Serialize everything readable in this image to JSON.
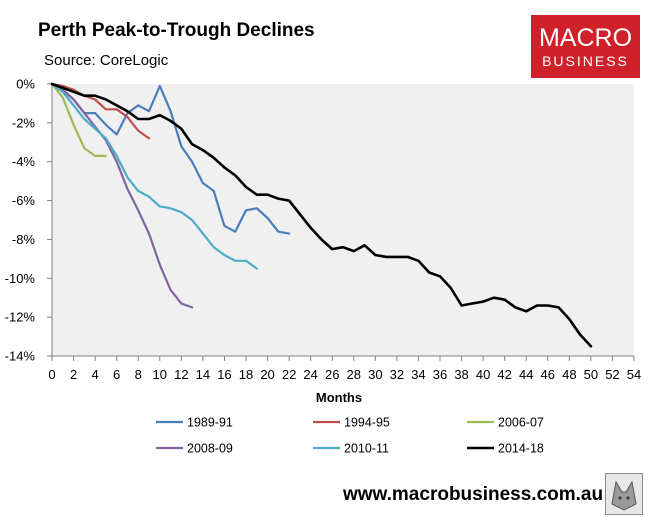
{
  "header": {
    "title": "Perth Peak-to-Trough Declines",
    "source": "Source: CoreLogic"
  },
  "logo": {
    "line1": "MACRO",
    "line2": "BUSINESS",
    "icon": "macrobusiness-logo"
  },
  "footer": {
    "url": "www.macrobusiness.com.au",
    "badge_icon": "wolf-badge-icon"
  },
  "colors": {
    "plot_bg": "#f0f0f0",
    "s1989": "#4a7ebb",
    "s1994": "#c0504d",
    "s2006": "#9bbb59",
    "s2008": "#8064a2",
    "s2010": "#4bacc6",
    "s2014": "#000000"
  },
  "chart_data": {
    "type": "line",
    "title": "Perth Peak-to-Trough Declines",
    "xlabel": "Months",
    "ylabel": "",
    "xlim": [
      0,
      54
    ],
    "ylim": [
      -14,
      0
    ],
    "x_ticks": [
      "0",
      "2",
      "4",
      "6",
      "8",
      "10",
      "12",
      "14",
      "16",
      "18",
      "20",
      "22",
      "24",
      "26",
      "28",
      "30",
      "32",
      "34",
      "36",
      "38",
      "40",
      "42",
      "44",
      "46",
      "48",
      "50",
      "52",
      "54"
    ],
    "y_ticks": [
      {
        "value": 0,
        "label": "0%"
      },
      {
        "value": -2,
        "label": "-2%"
      },
      {
        "value": -4,
        "label": "-4%"
      },
      {
        "value": -6,
        "label": "-6%"
      },
      {
        "value": -8,
        "label": "-8%"
      },
      {
        "value": -10,
        "label": "-10%"
      },
      {
        "value": -12,
        "label": "-12%"
      },
      {
        "value": -14,
        "label": "-14%"
      }
    ],
    "legend_position": "bottom",
    "series": [
      {
        "name": "1989-91",
        "color_key": "s1989",
        "width": 2.2,
        "x": [
          0,
          1,
          2,
          3,
          4,
          5,
          6,
          7,
          8,
          9,
          10,
          11,
          12,
          13,
          14,
          15,
          16,
          17,
          18,
          19,
          20,
          21,
          22
        ],
        "values": [
          0,
          -0.3,
          -0.8,
          -1.5,
          -1.5,
          -2.1,
          -2.6,
          -1.5,
          -1.1,
          -1.4,
          -0.1,
          -1.4,
          -3.2,
          -4.0,
          -5.1,
          -5.5,
          -7.3,
          -7.6,
          -6.5,
          -6.4,
          -6.9,
          -7.6,
          -7.7
        ]
      },
      {
        "name": "1994-95",
        "color_key": "s1994",
        "width": 2.2,
        "x": [
          0,
          1,
          2,
          3,
          4,
          5,
          6,
          7,
          8,
          9
        ],
        "values": [
          0,
          -0.1,
          -0.3,
          -0.6,
          -0.8,
          -1.3,
          -1.3,
          -1.7,
          -2.4,
          -2.8
        ]
      },
      {
        "name": "2006-07",
        "color_key": "s2006",
        "width": 2.2,
        "x": [
          0,
          1,
          2,
          3,
          4,
          5
        ],
        "values": [
          0,
          -0.7,
          -2.1,
          -3.3,
          -3.7,
          -3.7
        ]
      },
      {
        "name": "2008-09",
        "color_key": "s2008",
        "width": 2.2,
        "x": [
          0,
          1,
          2,
          3,
          4,
          5,
          6,
          7,
          8,
          9,
          10,
          11,
          12,
          13
        ],
        "values": [
          0,
          -0.3,
          -0.8,
          -1.5,
          -2.2,
          -2.9,
          -4.0,
          -5.4,
          -6.5,
          -7.7,
          -9.3,
          -10.6,
          -11.3,
          -11.5
        ]
      },
      {
        "name": "2010-11",
        "color_key": "s2010",
        "width": 2.2,
        "x": [
          0,
          1,
          2,
          3,
          4,
          5,
          6,
          7,
          8,
          9,
          10,
          11,
          12,
          13,
          14,
          15,
          16,
          17,
          18,
          19
        ],
        "values": [
          0,
          -0.4,
          -1.1,
          -1.8,
          -2.3,
          -2.8,
          -3.7,
          -4.8,
          -5.5,
          -5.8,
          -6.3,
          -6.4,
          -6.6,
          -7.0,
          -7.7,
          -8.4,
          -8.8,
          -9.1,
          -9.1,
          -9.5
        ]
      },
      {
        "name": "2014-18",
        "color_key": "s2014",
        "width": 2.6,
        "x": [
          0,
          1,
          2,
          3,
          4,
          5,
          6,
          7,
          8,
          9,
          10,
          11,
          12,
          13,
          14,
          15,
          16,
          17,
          18,
          19,
          20,
          21,
          22,
          23,
          24,
          25,
          26,
          27,
          28,
          29,
          30,
          31,
          32,
          33,
          34,
          35,
          36,
          37,
          38,
          39,
          40,
          41,
          42,
          43,
          44,
          45,
          46,
          47,
          48,
          49,
          50
        ],
        "values": [
          0,
          -0.2,
          -0.4,
          -0.6,
          -0.6,
          -0.8,
          -1.1,
          -1.4,
          -1.8,
          -1.8,
          -1.6,
          -1.9,
          -2.3,
          -3.1,
          -3.4,
          -3.8,
          -4.3,
          -4.7,
          -5.3,
          -5.7,
          -5.7,
          -5.9,
          -6.0,
          -6.7,
          -7.4,
          -8.0,
          -8.5,
          -8.4,
          -8.6,
          -8.3,
          -8.8,
          -8.9,
          -8.9,
          -8.9,
          -9.1,
          -9.7,
          -9.9,
          -10.5,
          -11.4,
          -11.3,
          -11.2,
          -11.0,
          -11.1,
          -11.5,
          -11.7,
          -11.4,
          -11.4,
          -11.5,
          -12.1,
          -12.9,
          -13.5
        ]
      }
    ]
  }
}
